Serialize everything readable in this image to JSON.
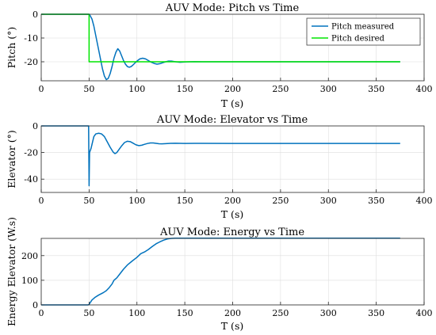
{
  "chart_data": [
    {
      "type": "line",
      "title": "AUV Mode: Pitch vs Time",
      "xlabel": "T (s)",
      "ylabel": "Pitch (°)",
      "xlim": [
        0,
        400
      ],
      "ylim": [
        -28,
        0
      ],
      "xticks": [
        0,
        50,
        100,
        150,
        200,
        250,
        300,
        350,
        400
      ],
      "yticks": [
        -20,
        -10,
        0
      ],
      "grid": true,
      "legend": "top-right",
      "series": [
        {
          "name": "Pitch measured",
          "color": "#0072BD",
          "points": [
            [
              0,
              0
            ],
            [
              50,
              0
            ],
            [
              51,
              -0.5
            ],
            [
              53,
              -2
            ],
            [
              55,
              -5
            ],
            [
              58,
              -11
            ],
            [
              61,
              -17
            ],
            [
              64,
              -23
            ],
            [
              66,
              -26
            ],
            [
              68,
              -27.5
            ],
            [
              70,
              -27
            ],
            [
              72,
              -25
            ],
            [
              74,
              -22
            ],
            [
              76,
              -18.5
            ],
            [
              78,
              -16
            ],
            [
              80,
              -14.5
            ],
            [
              82,
              -15.5
            ],
            [
              84,
              -17.5
            ],
            [
              86,
              -19.5
            ],
            [
              88,
              -21
            ],
            [
              90,
              -22
            ],
            [
              92,
              -22.3
            ],
            [
              94,
              -22
            ],
            [
              96,
              -21.3
            ],
            [
              98,
              -20.5
            ],
            [
              100,
              -19.7
            ],
            [
              103,
              -18.8
            ],
            [
              106,
              -18.5
            ],
            [
              109,
              -18.8
            ],
            [
              112,
              -19.5
            ],
            [
              115,
              -20.2
            ],
            [
              118,
              -20.7
            ],
            [
              121,
              -21
            ],
            [
              124,
              -20.8
            ],
            [
              127,
              -20.4
            ],
            [
              130,
              -20
            ],
            [
              133,
              -19.7
            ],
            [
              136,
              -19.7
            ],
            [
              139,
              -19.9
            ],
            [
              142,
              -20.1
            ],
            [
              145,
              -20.2
            ],
            [
              150,
              -20.1
            ],
            [
              155,
              -20
            ],
            [
              160,
              -19.95
            ],
            [
              170,
              -20
            ],
            [
              200,
              -20
            ],
            [
              250,
              -20
            ],
            [
              300,
              -20
            ],
            [
              350,
              -20
            ],
            [
              375,
              -20
            ]
          ]
        },
        {
          "name": "Pitch desired",
          "color": "#00E600",
          "points": [
            [
              0,
              0
            ],
            [
              50,
              0
            ],
            [
              50,
              -20
            ],
            [
              375,
              -20
            ]
          ]
        }
      ]
    },
    {
      "type": "line",
      "title": "AUV Mode: Elevator vs Time",
      "xlabel": "T (s)",
      "ylabel": "Elevator (°)",
      "xlim": [
        0,
        400
      ],
      "ylim": [
        -50,
        0
      ],
      "xticks": [
        0,
        50,
        100,
        150,
        200,
        250,
        300,
        350,
        400
      ],
      "yticks": [
        -40,
        -20,
        0
      ],
      "grid": true,
      "series": [
        {
          "color": "#0072BD",
          "points": [
            [
              0,
              0
            ],
            [
              49.5,
              0
            ],
            [
              50,
              -45
            ],
            [
              50.5,
              -20
            ],
            [
              51,
              -19
            ],
            [
              52,
              -17
            ],
            [
              53,
              -14
            ],
            [
              54,
              -11
            ],
            [
              55,
              -8
            ],
            [
              57,
              -6
            ],
            [
              60,
              -5.5
            ],
            [
              63,
              -6
            ],
            [
              66,
              -8
            ],
            [
              69,
              -12
            ],
            [
              72,
              -16
            ],
            [
              75,
              -19.5
            ],
            [
              77,
              -20.8
            ],
            [
              79,
              -20
            ],
            [
              81,
              -18
            ],
            [
              84,
              -15
            ],
            [
              87,
              -12.5
            ],
            [
              90,
              -11.5
            ],
            [
              93,
              -11.8
            ],
            [
              96,
              -13
            ],
            [
              99,
              -14.2
            ],
            [
              102,
              -14.8
            ],
            [
              105,
              -14.5
            ],
            [
              108,
              -13.8
            ],
            [
              111,
              -13.2
            ],
            [
              114,
              -12.8
            ],
            [
              117,
              -12.8
            ],
            [
              120,
              -13.1
            ],
            [
              123,
              -13.4
            ],
            [
              126,
              -13.5
            ],
            [
              130,
              -13.3
            ],
            [
              135,
              -13.1
            ],
            [
              140,
              -13
            ],
            [
              150,
              -13.2
            ],
            [
              160,
              -13.1
            ],
            [
              200,
              -13.2
            ],
            [
              250,
              -13.2
            ],
            [
              300,
              -13.2
            ],
            [
              350,
              -13.2
            ],
            [
              375,
              -13.2
            ]
          ]
        }
      ]
    },
    {
      "type": "line",
      "title": "AUV Mode: Energy vs Time",
      "xlabel": "T (s)",
      "ylabel": "Energy Elevator (W.s)",
      "xlim": [
        0,
        400
      ],
      "ylim": [
        0,
        270
      ],
      "xticks": [
        0,
        50,
        100,
        150,
        200,
        250,
        300,
        350,
        400
      ],
      "yticks": [
        0,
        100,
        200
      ],
      "grid": true,
      "series": [
        {
          "color": "#0072BD",
          "points": [
            [
              0,
              0
            ],
            [
              49,
              0
            ],
            [
              50,
              2
            ],
            [
              51,
              8
            ],
            [
              53,
              20
            ],
            [
              56,
              30
            ],
            [
              60,
              40
            ],
            [
              65,
              50
            ],
            [
              68,
              58
            ],
            [
              71,
              70
            ],
            [
              74,
              85
            ],
            [
              76,
              100
            ],
            [
              79,
              110
            ],
            [
              82,
              125
            ],
            [
              86,
              145
            ],
            [
              90,
              162
            ],
            [
              95,
              178
            ],
            [
              100,
              193
            ],
            [
              104,
              208
            ],
            [
              108,
              215
            ],
            [
              112,
              225
            ],
            [
              116,
              237
            ],
            [
              120,
              248
            ],
            [
              124,
              256
            ],
            [
              128,
              263
            ],
            [
              132,
              268
            ],
            [
              136,
              270
            ],
            [
              140,
              271
            ],
            [
              150,
              271
            ],
            [
              200,
              271
            ],
            [
              250,
              271
            ],
            [
              300,
              271
            ],
            [
              350,
              271
            ],
            [
              375,
              271
            ]
          ]
        }
      ]
    }
  ]
}
